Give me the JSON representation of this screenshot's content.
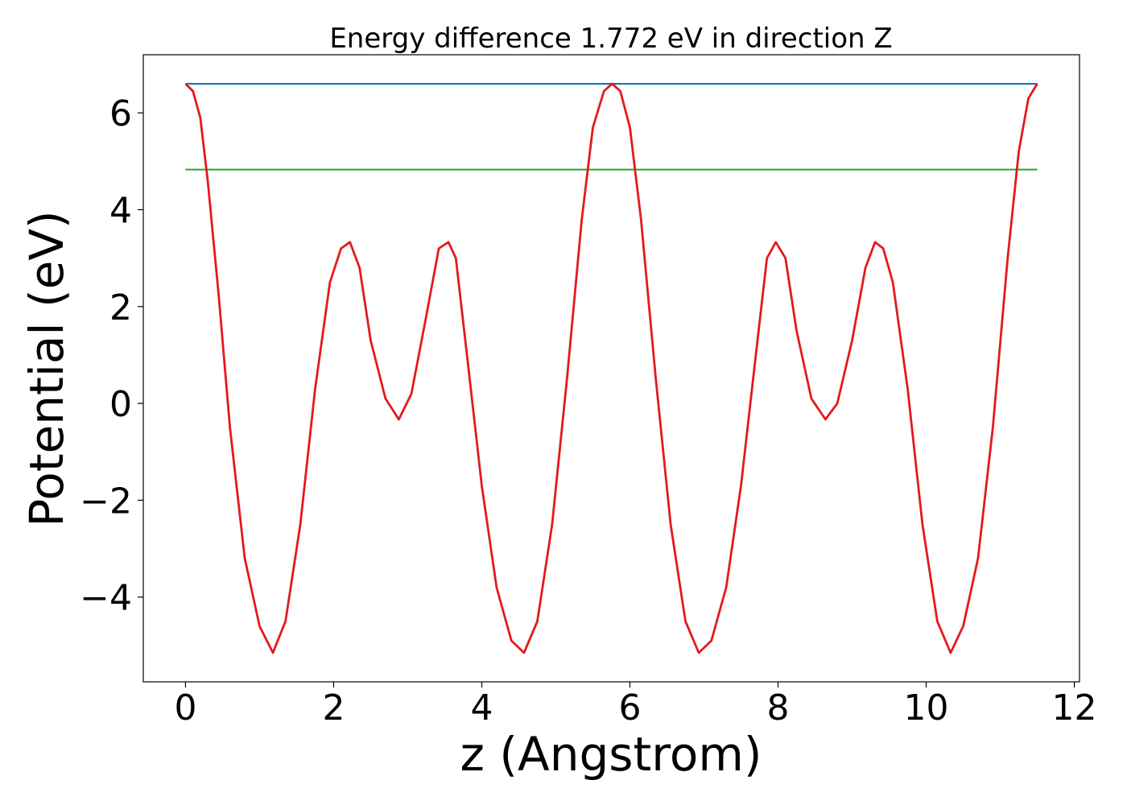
{
  "chart_data": {
    "type": "line",
    "title": "Energy difference 1.772 eV in direction Z",
    "xlabel": "z (Angstrom)",
    "ylabel": "Potential (eV)",
    "xlim": [
      -0.57,
      12.07
    ],
    "ylim": [
      -5.75,
      7.2
    ],
    "xticks": [
      0,
      2,
      4,
      6,
      8,
      10,
      12
    ],
    "xtick_labels": [
      "0",
      "2",
      "4",
      "6",
      "8",
      "10",
      "12"
    ],
    "yticks": [
      -4,
      -2,
      0,
      2,
      4,
      6
    ],
    "ytick_labels": [
      "−4",
      "−2",
      "0",
      "2",
      "4",
      "6"
    ],
    "grid": false,
    "series": [
      {
        "color": "#1f77b4",
        "x": [
          0,
          11.5
        ],
        "y": [
          6.6,
          6.6
        ]
      },
      {
        "color": "#2ca02c",
        "x": [
          0,
          11.5
        ],
        "y": [
          4.83,
          4.83
        ]
      },
      {
        "color": "#e31a1c",
        "x": [
          0,
          0.1,
          0.2,
          0.3,
          0.45,
          0.6,
          0.8,
          1.0,
          1.18,
          1.35,
          1.55,
          1.75,
          1.95,
          2.1,
          2.22,
          2.35,
          2.5,
          2.7,
          2.88,
          3.05,
          3.25,
          3.42,
          3.55,
          3.65,
          3.8,
          4.0,
          4.2,
          4.4,
          4.57,
          4.75,
          4.95,
          5.15,
          5.35,
          5.5,
          5.65,
          5.76,
          5.87,
          6.0,
          6.15,
          6.35,
          6.55,
          6.75,
          6.93,
          7.1,
          7.3,
          7.5,
          7.7,
          7.85,
          7.97,
          8.1,
          8.25,
          8.45,
          8.64,
          8.8,
          9.0,
          9.18,
          9.31,
          9.42,
          9.55,
          9.75,
          9.95,
          10.15,
          10.33,
          10.5,
          10.7,
          10.9,
          11.1,
          11.25,
          11.38,
          11.5
        ],
        "y": [
          6.6,
          6.45,
          5.9,
          4.6,
          2.2,
          -0.5,
          -3.2,
          -4.6,
          -5.15,
          -4.5,
          -2.5,
          0.3,
          2.5,
          3.2,
          3.33,
          2.8,
          1.3,
          0.1,
          -0.33,
          0.2,
          1.8,
          3.2,
          3.33,
          3.0,
          1.0,
          -1.7,
          -3.8,
          -4.9,
          -5.15,
          -4.5,
          -2.5,
          0.5,
          3.8,
          5.7,
          6.45,
          6.6,
          6.45,
          5.7,
          3.8,
          0.5,
          -2.5,
          -4.5,
          -5.15,
          -4.9,
          -3.8,
          -1.7,
          1.0,
          3.0,
          3.33,
          3.0,
          1.5,
          0.1,
          -0.33,
          0.0,
          1.3,
          2.8,
          3.33,
          3.2,
          2.5,
          0.3,
          -2.5,
          -4.5,
          -5.15,
          -4.6,
          -3.2,
          -0.5,
          3.0,
          5.2,
          6.3,
          6.6
        ]
      }
    ]
  }
}
